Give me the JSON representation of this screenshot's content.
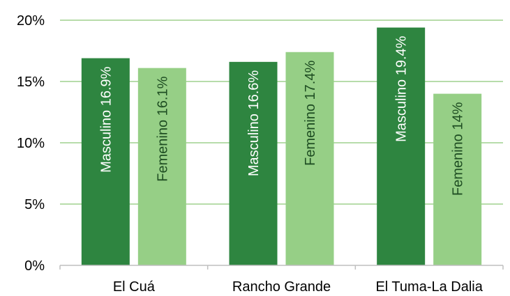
{
  "chart_data": {
    "type": "bar",
    "categories": [
      "El Cuá",
      "Rancho Grande",
      "El Tuma-La Dalia"
    ],
    "series": [
      {
        "values": [
          16.9,
          16.6,
          19.4
        ],
        "labels": [
          "Masculino 16.9%",
          "Masculino 16.6%",
          "Masculino 19.4%"
        ],
        "color": "#2e8540",
        "label_color": "#ffffff"
      },
      {
        "values": [
          16.1,
          17.4,
          14.0
        ],
        "labels": [
          "Femenino 16.1%",
          "Femenino 17.4%",
          "Femenino 14%"
        ],
        "color": "#96cf86",
        "label_color": "#1e4d22"
      }
    ],
    "yticks": [
      "0%",
      "5%",
      "10%",
      "15%",
      "20%"
    ],
    "ylim": [
      0,
      20
    ],
    "grid": true,
    "gridline_color": "#9fd18e",
    "axis_color": "#bfbfbf"
  }
}
